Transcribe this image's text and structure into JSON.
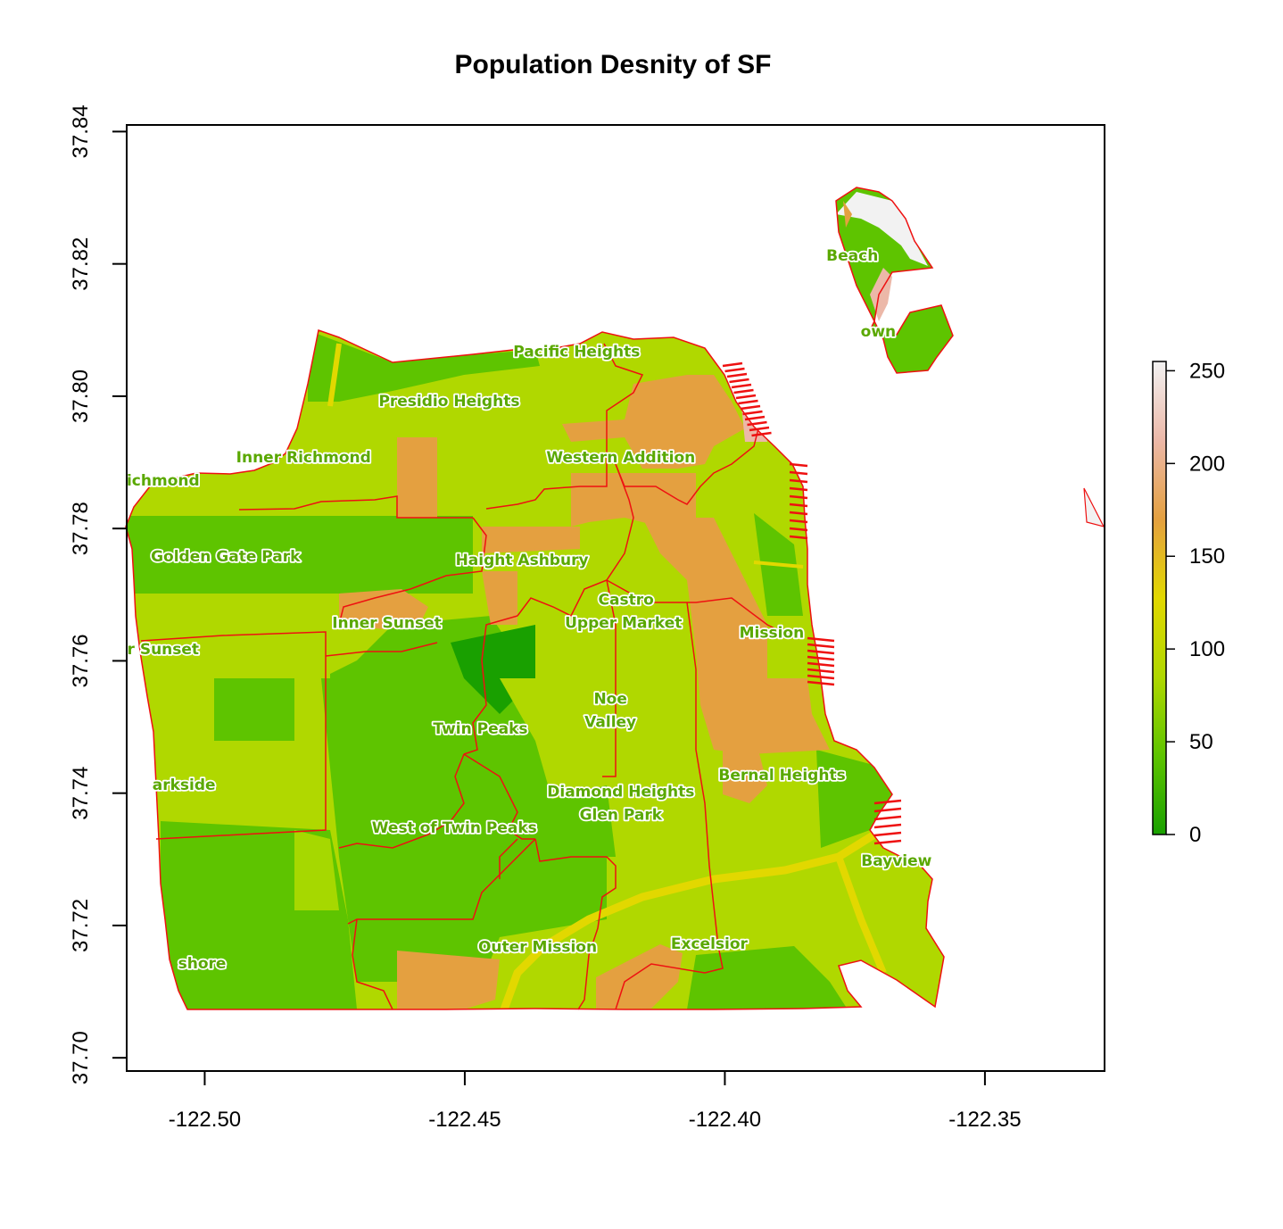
{
  "title": "Population Desnity of SF",
  "chart_data": {
    "type": "heatmap",
    "title": "Population Desnity of SF",
    "xlabel": "",
    "ylabel": "",
    "xlim": [
      -122.515,
      -122.327
    ],
    "ylim": [
      37.698,
      37.841
    ],
    "x_ticks": [
      -122.5,
      -122.45,
      -122.4,
      -122.35
    ],
    "x_tick_labels": [
      "-122.50",
      "-122.45",
      "-122.40",
      "-122.35"
    ],
    "y_ticks": [
      37.7,
      37.72,
      37.74,
      37.76,
      37.78,
      37.8,
      37.82,
      37.84
    ],
    "y_tick_labels": [
      "37.70",
      "37.72",
      "37.74",
      "37.76",
      "37.78",
      "37.80",
      "37.82",
      "37.84"
    ],
    "legend": {
      "position": "right",
      "range": [
        0,
        255
      ],
      "ticks": [
        0,
        50,
        100,
        150,
        200,
        250
      ],
      "tick_labels": [
        "0",
        "50",
        "100",
        "150",
        "200",
        "250"
      ],
      "colors": [
        "#19a000",
        "#5ec400",
        "#b0d800",
        "#e2d800",
        "#e4a040",
        "#ecb8a8",
        "#f2f2f2"
      ]
    },
    "boundary_color": "#ee1111",
    "label_color": "#5aa800",
    "neighborhood_labels": [
      {
        "text": "Pacific Heights",
        "x": -122.4285,
        "y": 37.806
      },
      {
        "text": "Presidio Heights",
        "x": -122.453,
        "y": 37.7985
      },
      {
        "text": "Inner Richmond",
        "x": -122.481,
        "y": 37.79
      },
      {
        "text": "Western Addition",
        "x": -122.42,
        "y": 37.79
      },
      {
        "text": "ichmond",
        "x": -122.508,
        "y": 37.7865
      },
      {
        "text": "Golden Gate Park",
        "x": -122.496,
        "y": 37.775
      },
      {
        "text": "Haight Ashbury",
        "x": -122.439,
        "y": 37.7745
      },
      {
        "text": "Castro",
        "x": -122.419,
        "y": 37.7685
      },
      {
        "text": "Upper Market",
        "x": -122.4195,
        "y": 37.765
      },
      {
        "text": "Inner Sunset",
        "x": -122.465,
        "y": 37.765
      },
      {
        "text": "Mission",
        "x": -122.391,
        "y": 37.7635
      },
      {
        "text": "r Sunset",
        "x": -122.508,
        "y": 37.761
      },
      {
        "text": "Noe",
        "x": -122.422,
        "y": 37.7535
      },
      {
        "text": "Valley",
        "x": -122.422,
        "y": 37.75
      },
      {
        "text": "Twin Peaks",
        "x": -122.447,
        "y": 37.749
      },
      {
        "text": "Bernal Heights",
        "x": -122.389,
        "y": 37.742
      },
      {
        "text": "arkside",
        "x": -122.504,
        "y": 37.7405
      },
      {
        "text": "Diamond Heights",
        "x": -122.42,
        "y": 37.7395
      },
      {
        "text": "Glen Park",
        "x": -122.42,
        "y": 37.736
      },
      {
        "text": "West of Twin Peaks",
        "x": -122.452,
        "y": 37.734
      },
      {
        "text": "Bayview",
        "x": -122.367,
        "y": 37.729
      },
      {
        "text": "Outer Mission",
        "x": -122.436,
        "y": 37.716
      },
      {
        "text": "Excelsior",
        "x": -122.403,
        "y": 37.7165
      },
      {
        "text": "shore",
        "x": -122.5005,
        "y": 37.7135
      },
      {
        "text": "Beach",
        "x": -122.3755,
        "y": 37.8205
      },
      {
        "text": "own",
        "x": -122.3705,
        "y": 37.809
      }
    ]
  }
}
